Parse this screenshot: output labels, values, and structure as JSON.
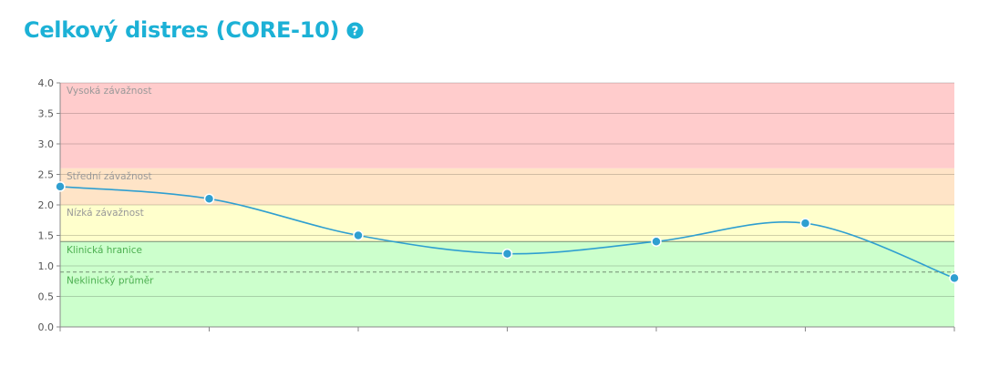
{
  "header": {
    "title": "Celkový distres (CORE-10)",
    "help_icon": "question-circle-icon"
  },
  "chart_data": {
    "type": "line",
    "title": "Celkový distres (CORE-10)",
    "xlabel": "",
    "ylabel": "",
    "ylim": [
      0,
      4
    ],
    "y_ticks": [
      "0.0",
      "0.5",
      "1.0",
      "1.5",
      "2.0",
      "2.5",
      "3.0",
      "3.5",
      "4.0"
    ],
    "grid": true,
    "x": [
      1,
      2,
      3,
      4,
      5,
      6,
      7
    ],
    "series": [
      {
        "values": [
          2.3,
          2.1,
          1.5,
          1.2,
          1.4,
          1.7,
          0.8
        ]
      }
    ],
    "bands": [
      {
        "label": "Vysoká závažnost",
        "from": 2.6,
        "to": 4.0,
        "color": "#ffcccc"
      },
      {
        "label": "Střední závažnost",
        "from": 2.0,
        "to": 2.6,
        "color": "#ffe4c7"
      },
      {
        "label": "Nízká závažnost",
        "from": 1.4,
        "to": 2.0,
        "color": "#ffffcc"
      },
      {
        "label": "",
        "from": 0.0,
        "to": 1.4,
        "color": "#ccffcc"
      }
    ],
    "reference_lines": [
      {
        "label": "Klinická hranice",
        "value": 1.4,
        "style": "solid"
      },
      {
        "label": "Neklinický průměr",
        "value": 0.9,
        "style": "dashed"
      }
    ],
    "colors": {
      "line": "#2f9fd0",
      "title": "#1cb1d6",
      "clinical_label": "#4caf50",
      "band_label": "#999999"
    }
  }
}
